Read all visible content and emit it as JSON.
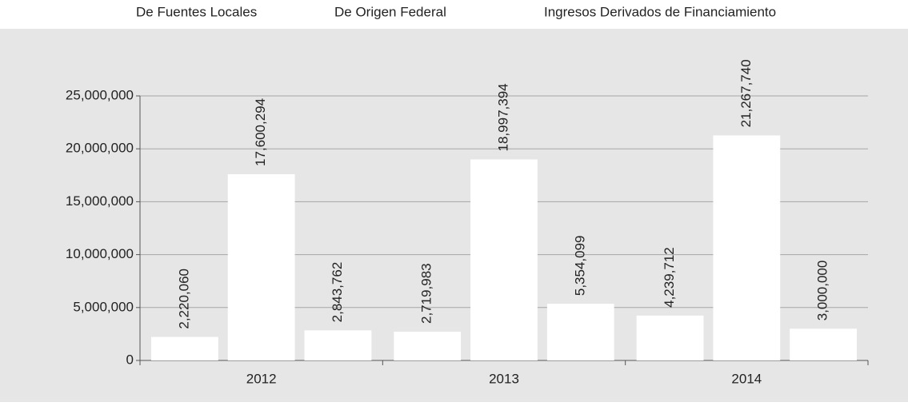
{
  "chart_data": {
    "type": "bar",
    "categories": [
      "2012",
      "2013",
      "2014"
    ],
    "series": [
      {
        "name": "De Fuentes Locales",
        "color": "#ffffff",
        "values": [
          2220060,
          2719983,
          4239712
        ],
        "value_labels": [
          "2,220,060",
          "2,719,983",
          "4,239,712"
        ]
      },
      {
        "name": "De Origen Federal",
        "color": "#ffffff",
        "values": [
          17600294,
          18997394,
          21267740
        ],
        "value_labels": [
          "17,600,294",
          "18,997,394",
          "21,267,740"
        ]
      },
      {
        "name": "Ingresos Derivados de Financiamiento",
        "color": "#ffffff",
        "values": [
          2843762,
          5354099,
          3000000
        ],
        "value_labels": [
          "2,843,762",
          "5,354,099",
          "3,000,000"
        ]
      }
    ],
    "ylim": [
      0,
      25000000
    ],
    "yticks": [
      0,
      {
        "value": 5000000,
        "label": "5,000,000"
      },
      {
        "value": 10000000,
        "label": "10,000,000"
      },
      {
        "value": 15000000,
        "label": "15,000,000"
      },
      {
        "value": 20000000,
        "label": "20,000,000"
      },
      {
        "value": 25000000,
        "label": "25,000,000"
      }
    ],
    "grid": true,
    "legend": "top"
  }
}
